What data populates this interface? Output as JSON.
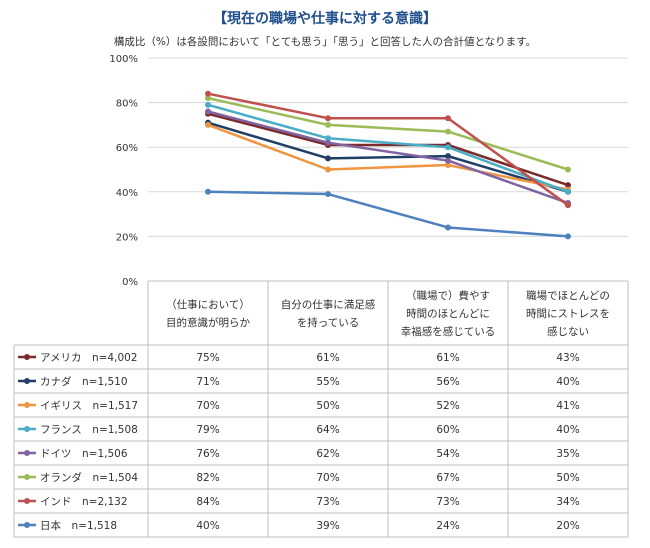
{
  "page": {
    "title": "【現在の職場や仕事に対する意識】",
    "subtitle": "構成比（%）は各設問において「とても思う」「思う」と回答した人の合計値となります。"
  },
  "chart_data": {
    "type": "line",
    "title": "【現在の職場や仕事に対する意識】",
    "ylim": [
      0,
      100
    ],
    "yticks": [
      "100%",
      "80%",
      "60%",
      "40%",
      "20%",
      "0%"
    ],
    "categories": [
      [
        "（仕事において）",
        "目的意識が明らか"
      ],
      [
        "自分の仕事に満足感",
        "を持っている"
      ],
      [
        "（職場で）費やす",
        "時間のほとんどに",
        "幸福感を感じている"
      ],
      [
        "職場でほとんどの",
        "時間にストレスを",
        "感じない"
      ]
    ],
    "series": [
      {
        "name": "アメリカ　n=4,002",
        "color": "#7b2a2a",
        "values": [
          75,
          61,
          61,
          43
        ],
        "labels": [
          "75%",
          "61%",
          "61%",
          "43%"
        ]
      },
      {
        "name": "カナダ　n=1,510",
        "color": "#1f3f66",
        "values": [
          71,
          55,
          56,
          40
        ],
        "labels": [
          "71%",
          "55%",
          "56%",
          "40%"
        ]
      },
      {
        "name": "イギリス　n=1,517",
        "color": "#f0953f",
        "values": [
          70,
          50,
          52,
          41
        ],
        "labels": [
          "70%",
          "50%",
          "52%",
          "41%"
        ]
      },
      {
        "name": "フランス　n=1,508",
        "color": "#4bacc6",
        "values": [
          79,
          64,
          60,
          40
        ],
        "labels": [
          "79%",
          "64%",
          "60%",
          "40%"
        ]
      },
      {
        "name": "ドイツ　n=1,506",
        "color": "#8064a2",
        "values": [
          76,
          62,
          54,
          35
        ],
        "labels": [
          "76%",
          "62%",
          "54%",
          "35%"
        ]
      },
      {
        "name": "オランダ　n=1,504",
        "color": "#9bbb59",
        "values": [
          82,
          70,
          67,
          50
        ],
        "labels": [
          "82%",
          "70%",
          "67%",
          "50%"
        ]
      },
      {
        "name": "インド　n=2,132",
        "color": "#c0504d",
        "values": [
          84,
          73,
          73,
          34
        ],
        "labels": [
          "84%",
          "73%",
          "73%",
          "34%"
        ]
      },
      {
        "name": "日本　n=1,518",
        "color": "#4f81bd",
        "values": [
          40,
          39,
          24,
          20
        ],
        "labels": [
          "40%",
          "39%",
          "24%",
          "20%"
        ]
      }
    ]
  }
}
